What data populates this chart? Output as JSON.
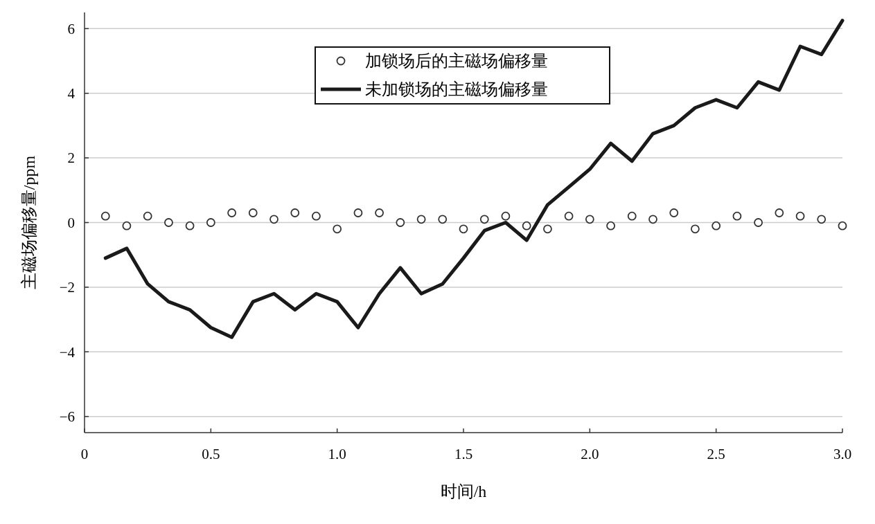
{
  "chart_data": {
    "type": "line",
    "xlabel": "时间/h",
    "ylabel": "主磁场偏移量/ppm",
    "xlim": [
      0,
      3
    ],
    "ylim": [
      -6.5,
      6.5
    ],
    "xticks": [
      0,
      0.5,
      {
        "value": 1,
        "label": "1.0"
      },
      1.5,
      {
        "value": 2,
        "label": "2.0"
      },
      2.5,
      {
        "value": 3,
        "label": "3.0"
      }
    ],
    "yticks": [
      {
        "value": -6,
        "label": "−6"
      },
      {
        "value": -4,
        "label": "−4"
      },
      {
        "value": -2,
        "label": "−2"
      },
      0,
      2,
      4,
      6
    ],
    "grid": "y",
    "legend": "top",
    "x": [
      0.083,
      0.167,
      0.25,
      0.333,
      0.417,
      0.5,
      0.583,
      0.667,
      0.75,
      0.833,
      0.917,
      1.0,
      1.083,
      1.167,
      1.25,
      1.333,
      1.417,
      1.5,
      1.583,
      1.667,
      1.75,
      1.833,
      1.917,
      2.0,
      2.083,
      2.167,
      2.25,
      2.333,
      2.417,
      2.5,
      2.583,
      2.667,
      2.75,
      2.833,
      2.917,
      3.0
    ],
    "series": [
      {
        "name": "加锁场后的主磁场偏移量",
        "type": "scatter",
        "marker": "circle",
        "color": "#333333",
        "values": [
          0.2,
          -0.1,
          0.2,
          0,
          -0.1,
          0,
          0.3,
          0.3,
          0.1,
          0.3,
          0.2,
          -0.2,
          0.3,
          0.3,
          0,
          0.1,
          0.1,
          -0.2,
          0.1,
          0.2,
          -0.1,
          -0.2,
          0.2,
          0.1,
          -0.1,
          0.2,
          0.1,
          0.3,
          -0.2,
          -0.1,
          0.2,
          0,
          0.3,
          0.2,
          0.1,
          -0.1
        ]
      },
      {
        "name": "未加锁场的主磁场偏移量",
        "line_style": "solid",
        "color": "#1a1a1a",
        "values": [
          -1.1,
          -0.8,
          -1.9,
          -2.45,
          -2.7,
          -3.25,
          -3.55,
          -2.45,
          -2.2,
          -2.7,
          -2.2,
          -2.45,
          -3.25,
          -2.2,
          -1.4,
          -2.2,
          -1.9,
          -1.1,
          -0.25,
          0,
          -0.55,
          0.55,
          1.1,
          1.65,
          2.45,
          1.9,
          2.75,
          3.0,
          3.55,
          3.8,
          3.55,
          4.35,
          4.1,
          5.45,
          5.2,
          6.25
        ]
      }
    ]
  }
}
